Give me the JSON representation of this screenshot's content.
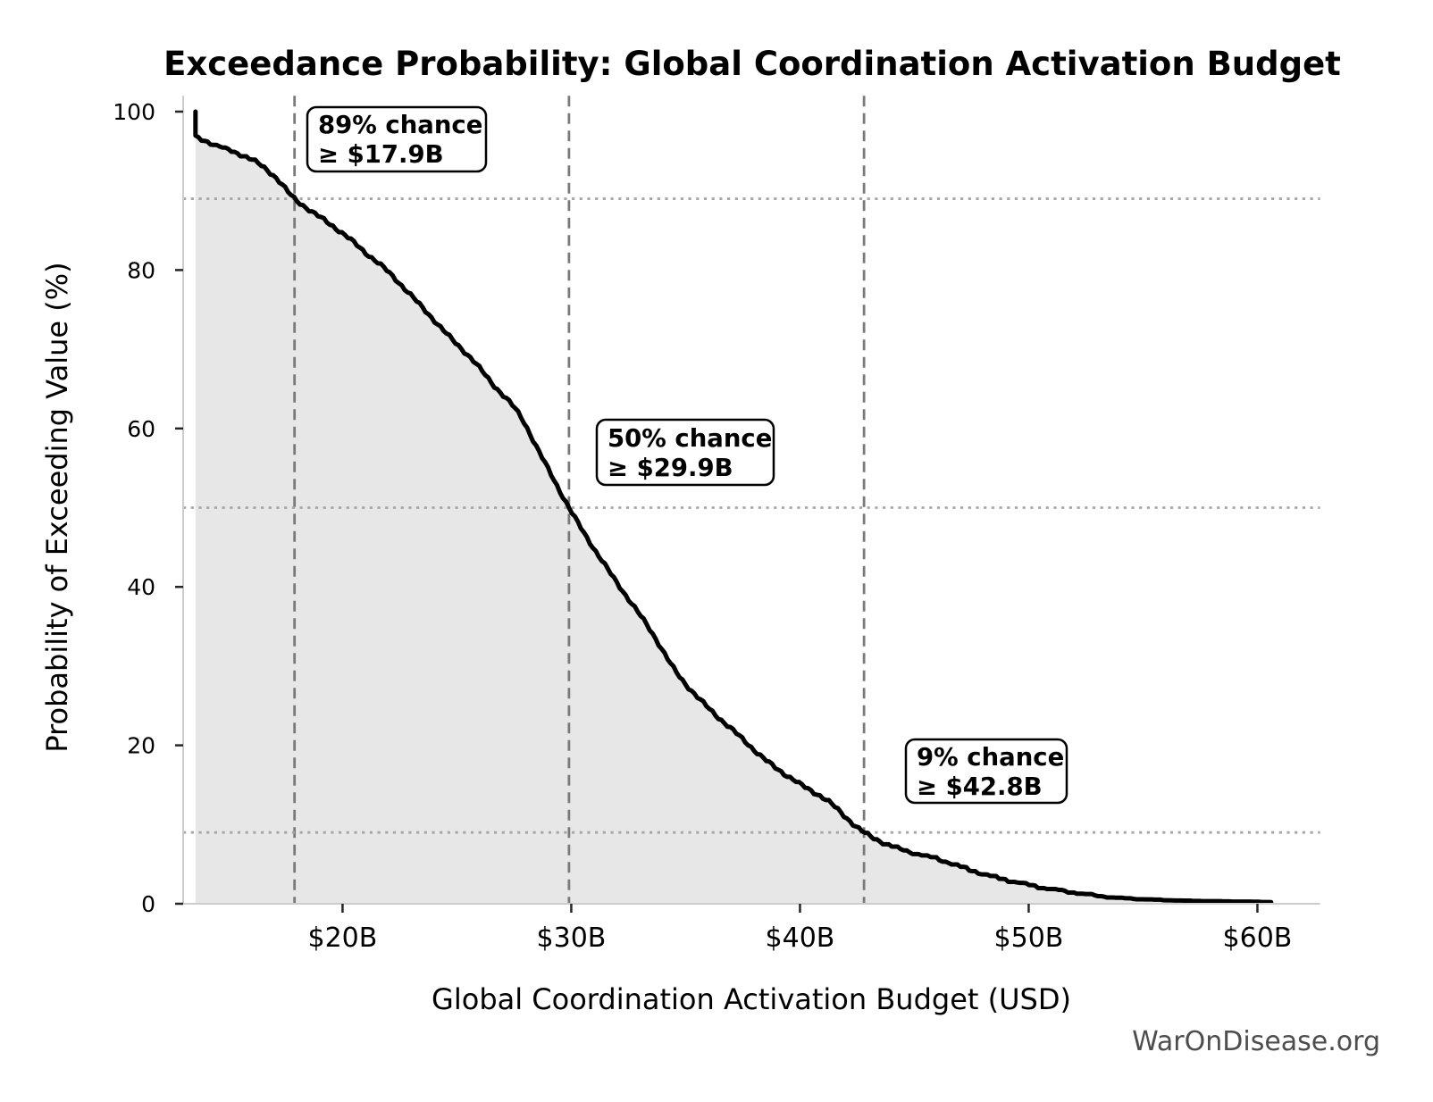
{
  "chart_data": {
    "type": "line",
    "title": "Exceedance Probability: Global Coordination Activation Budget",
    "xlabel": "Global Coordination Activation Budget (USD)",
    "ylabel": "Probability of Exceeding Value (%)",
    "xlim": [
      13.03,
      62.74
    ],
    "ylim": [
      0,
      102
    ],
    "x_ticks": [
      20,
      30,
      40,
      50,
      60
    ],
    "x_tick_labels": [
      "$20B",
      "$30B",
      "$40B",
      "$50B",
      "$60B"
    ],
    "y_ticks": [
      0,
      20,
      40,
      60,
      80,
      100
    ],
    "y_tick_labels": [
      "0",
      "20",
      "40",
      "60",
      "80",
      "100"
    ],
    "series": [
      {
        "name": "Exceedance probability curve (CCDF)",
        "points": [
          [
            13.57,
            100
          ],
          [
            13.57,
            96.8
          ],
          [
            14.0,
            96.3
          ],
          [
            15.0,
            95.2
          ],
          [
            16.0,
            94.0
          ],
          [
            17.0,
            91.9
          ],
          [
            17.9,
            89.0
          ],
          [
            18.6,
            87.5
          ],
          [
            19.4,
            85.9
          ],
          [
            20.2,
            84.2
          ],
          [
            21.0,
            82.2
          ],
          [
            21.8,
            80.3
          ],
          [
            22.8,
            77.4
          ],
          [
            23.8,
            74.3
          ],
          [
            24.7,
            71.5
          ],
          [
            25.7,
            68.6
          ],
          [
            26.6,
            65.5
          ],
          [
            27.7,
            61.9
          ],
          [
            28.6,
            57.0
          ],
          [
            29.3,
            53.2
          ],
          [
            29.9,
            50.0
          ],
          [
            30.8,
            45.7
          ],
          [
            32.1,
            40.1
          ],
          [
            33.4,
            34.8
          ],
          [
            34.7,
            28.8
          ],
          [
            36.0,
            24.7
          ],
          [
            37.3,
            21.3
          ],
          [
            38.6,
            17.9
          ],
          [
            39.9,
            15.3
          ],
          [
            41.2,
            13.0
          ],
          [
            42.8,
            9.0
          ],
          [
            44.1,
            7.2
          ],
          [
            46.0,
            5.7
          ],
          [
            48.0,
            3.8
          ],
          [
            49.9,
            2.5
          ],
          [
            51.9,
            1.5
          ],
          [
            53.8,
            0.8
          ],
          [
            55.8,
            0.5
          ],
          [
            57.7,
            0.35
          ],
          [
            59.5,
            0.28
          ],
          [
            60.6,
            0.22
          ]
        ]
      }
    ],
    "style": {
      "curve_color": "#000000",
      "fill_color": "#e7e7e7",
      "dashed_line_color": "#7a7a7a",
      "dotted_line_color": "#a6a6a6",
      "spine_color": "#cccccc",
      "tick_color": "#262626"
    }
  },
  "annotations": [
    {
      "line1": "89% chance",
      "line2": "≥ $17.9B",
      "x": 17.9,
      "prob": 89
    },
    {
      "line1": "50% chance",
      "line2": "≥ $29.9B",
      "x": 29.9,
      "prob": 50
    },
    {
      "line1": "9% chance",
      "line2": "≥ $42.8B",
      "x": 42.8,
      "prob": 9
    }
  ],
  "watermark": "WarOnDisease.org"
}
